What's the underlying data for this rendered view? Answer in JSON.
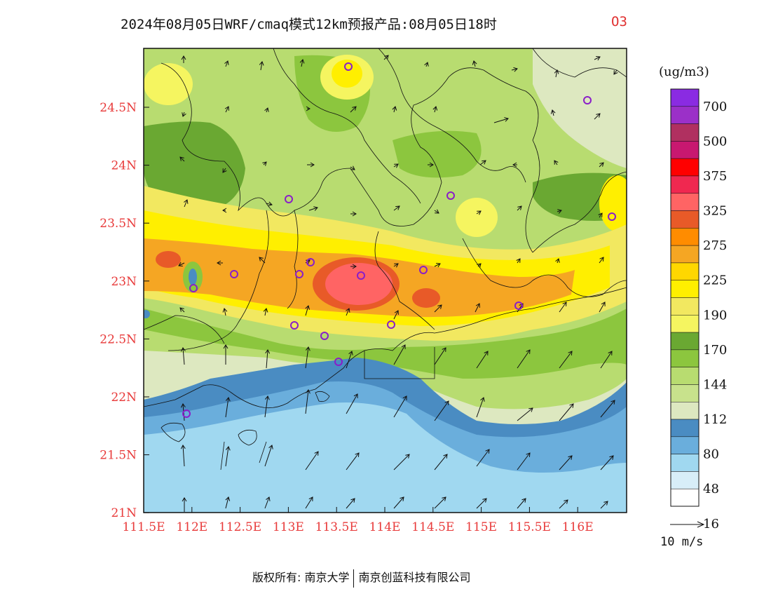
{
  "title": "2024年08月05日WRF/cmaq模式12km预报产品:08月05日18时",
  "species": "O3",
  "legend": {
    "unit": "(ug/m3)",
    "levels": [
      "700",
      "500",
      "375",
      "325",
      "275",
      "225",
      "190",
      "170",
      "144",
      "112",
      "80",
      "48",
      "16"
    ],
    "colors": [
      "#8a2be2",
      "#9b30c8",
      "#b03060",
      "#c81870",
      "#ff0000",
      "#f02850",
      "#ff6464",
      "#e85a28",
      "#ff8c00",
      "#f5a623",
      "#ffd700",
      "#ffef00",
      "#f2e860",
      "#f5f560",
      "#6aa832",
      "#8cc63e",
      "#b8dc70",
      "#c8e28c",
      "#dde8c0",
      "#4a8cc2",
      "#6aaedc",
      "#a0d8f0",
      "#d8eef8",
      "#ffffff"
    ]
  },
  "wind_scale": {
    "label": "10 m/s"
  },
  "axes": {
    "lat_labels": [
      "24.5N",
      "24N",
      "23.5N",
      "23N",
      "22.5N",
      "22N",
      "21.5N",
      "21N"
    ],
    "lon_labels": [
      "111.5E",
      "112E",
      "112.5E",
      "113E",
      "113.5E",
      "114E",
      "114.5E",
      "115E",
      "115.5E",
      "116E"
    ]
  },
  "footer": {
    "left": "版权所有: 南京大学",
    "right": "南京创蓝科技有限公司"
  }
}
